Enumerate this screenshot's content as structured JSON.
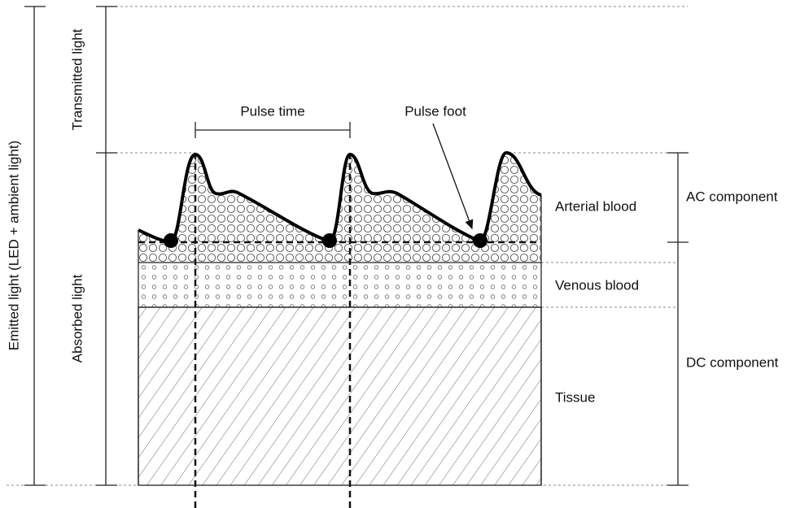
{
  "labels": {
    "transmitted": "Transmitted light",
    "absorbed": "Absorbed light",
    "emitted": "Emitted light (LED + ambient light)",
    "pulse_time": "Pulse time",
    "pulse_foot": "Pulse foot",
    "arterial": "Arterial blood",
    "venous": "Venous blood",
    "tissue": "Tissue",
    "ac": "AC component",
    "dc": "DC component"
  }
}
